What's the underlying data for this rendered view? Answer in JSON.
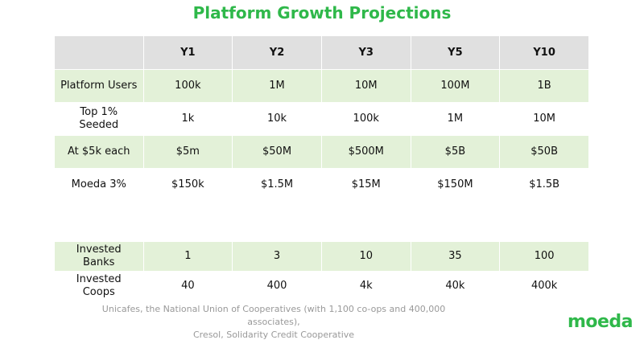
{
  "title": "Platform Growth Projections",
  "table": {
    "header": [
      "",
      "Y1",
      "Y2",
      "Y3",
      "Y5",
      "Y10"
    ],
    "rows": [
      {
        "label": "Platform Users",
        "values": [
          "100k",
          "1M",
          "10M",
          "100M",
          "1B"
        ]
      },
      {
        "label": "Top 1% Seeded",
        "values": [
          "1k",
          "10k",
          "100k",
          "1M",
          "10M"
        ]
      },
      {
        "label": "At $5k each",
        "values": [
          "$5m",
          "$50M",
          "$500M",
          "$5B",
          "$50B"
        ]
      },
      {
        "label": "Moeda 3%",
        "values": [
          "$150k",
          "$1.5M",
          "$15M",
          "$150M",
          "$1.5B"
        ]
      },
      {
        "label": "Invested Banks",
        "values": [
          "1",
          "3",
          "10",
          "35",
          "100"
        ]
      },
      {
        "label": "Invested Coops",
        "values": [
          "40",
          "400",
          "4k",
          "40k",
          "400k"
        ]
      }
    ]
  },
  "footnote": {
    "line1": "Unicafes,  the National Union of Cooperatives (with 1,100 co-ops and 400,000  associates),",
    "line2": "Cresol, Solidarity Credit Cooperative"
  },
  "logo": "moeda",
  "colors": {
    "accent_green": "#2fb84a",
    "row_highlight": "#e3f1d8",
    "header_gray": "#e0e0e0"
  }
}
